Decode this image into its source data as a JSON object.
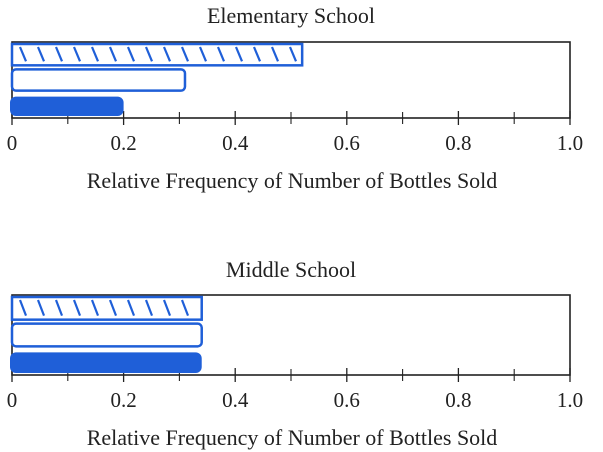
{
  "chart_data": [
    {
      "type": "bar",
      "title": "Elementary School",
      "xlabel": "Relative Frequency of Number of Bottles Sold",
      "categories": [
        null,
        null,
        null
      ],
      "values": [
        0.52,
        0.31,
        0.2
      ],
      "bar_styles": [
        "hatched",
        "outline",
        "filled"
      ],
      "color": "#1f5fd8",
      "xlim": [
        0,
        1
      ],
      "xticks": [
        0,
        0.2,
        0.4,
        0.6,
        0.8,
        {
          "value": 1,
          "label": "1.0"
        }
      ],
      "xminorticks": [
        0.1,
        0.3,
        0.5,
        0.7,
        0.9
      ]
    },
    {
      "type": "bar",
      "title": "Middle School",
      "xlabel": "Relative Frequency of Number of Bottles Sold",
      "categories": [
        null,
        null,
        null
      ],
      "values": [
        0.34,
        0.34,
        0.34
      ],
      "bar_styles": [
        "hatched",
        "outline",
        "filled"
      ],
      "color": "#1f5fd8",
      "xlim": [
        0,
        1
      ],
      "xticks": [
        0,
        0.2,
        0.4,
        0.6,
        0.8,
        {
          "value": 1,
          "label": "1.0"
        }
      ],
      "xminorticks": [
        0.1,
        0.3,
        0.5,
        0.7,
        0.9
      ]
    }
  ]
}
